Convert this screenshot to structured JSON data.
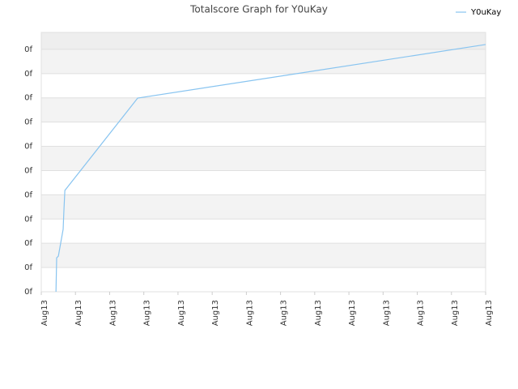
{
  "chart_data": {
    "type": "line",
    "title": "Totalscore Graph for Y0uKay",
    "x": [
      0.43,
      0.45,
      0.5,
      0.64,
      0.66,
      0.69,
      2.82,
      13
    ],
    "series": [
      {
        "name": "Y0uKay",
        "color": "#88c4f0",
        "values": [
          0,
          1.4,
          1.47,
          2.58,
          3.28,
          4.18,
          7.99,
          10.2
        ]
      }
    ],
    "xlim": [
      0,
      13
    ],
    "xticks": [
      {
        "value": 0,
        "label": "Aug13"
      },
      {
        "value": 1,
        "label": "Aug13"
      },
      {
        "value": 2,
        "label": "Aug13"
      },
      {
        "value": 3,
        "label": "Aug13"
      },
      {
        "value": 4,
        "label": "Aug13"
      },
      {
        "value": 5,
        "label": "Aug13"
      },
      {
        "value": 6,
        "label": "Aug13"
      },
      {
        "value": 7,
        "label": "Aug13"
      },
      {
        "value": 8,
        "label": "Aug13"
      },
      {
        "value": 9,
        "label": "Aug13"
      },
      {
        "value": 10,
        "label": "Aug13"
      },
      {
        "value": 11,
        "label": "Aug13"
      },
      {
        "value": 12,
        "label": "Aug13"
      },
      {
        "value": 13,
        "label": "Aug13"
      }
    ],
    "ylim": [
      0,
      10.7
    ],
    "yticks": [
      {
        "value": 0,
        "label": "0f"
      },
      {
        "value": 1,
        "label": "0f"
      },
      {
        "value": 2,
        "label": "0f"
      },
      {
        "value": 3,
        "label": "0f"
      },
      {
        "value": 4,
        "label": "0f"
      },
      {
        "value": 5,
        "label": "0f"
      },
      {
        "value": 6,
        "label": "0f"
      },
      {
        "value": 7,
        "label": "0f"
      },
      {
        "value": 8,
        "label": "0f"
      },
      {
        "value": 9,
        "label": "0f"
      },
      {
        "value": 10,
        "label": "0f"
      }
    ],
    "grid": true,
    "legend": "top-right"
  }
}
